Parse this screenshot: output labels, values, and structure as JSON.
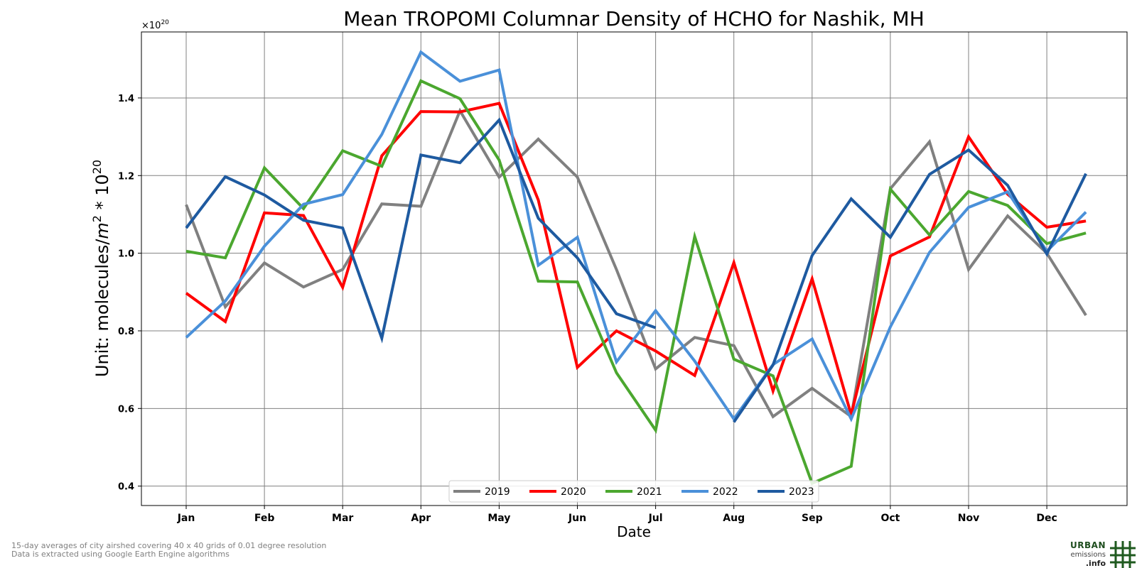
{
  "chart_data": {
    "type": "line",
    "title": "Mean TROPOMI Columnar Density of HCHO for Nashik, MH",
    "xlabel": "Date",
    "ylabel_prefix": "Unit: molecules/",
    "ylabel_m": "m",
    "ylabel_exp2": "2",
    "ylabel_mid": " * 10",
    "ylabel_exp20": "20",
    "offset_base": "×10",
    "offset_exp": "20",
    "ylim": [
      0.35,
      1.57
    ],
    "yticks": [
      "0.4",
      "0.6",
      "0.8",
      "1.0",
      "1.2",
      "1.4"
    ],
    "ytick_values": [
      0.4,
      0.6,
      0.8,
      1.0,
      1.2,
      1.4
    ],
    "xticks": [
      "Jan",
      "Feb",
      "Mar",
      "Apr",
      "May",
      "Jun",
      "Jul",
      "Aug",
      "Sep",
      "Oct",
      "Nov",
      "Dec"
    ],
    "x_points": [
      "Jan 1",
      "Jan 16",
      "Feb 1",
      "Feb 16",
      "Mar 1",
      "Mar 16",
      "Apr 1",
      "Apr 16",
      "May 1",
      "May 16",
      "Jun 1",
      "Jun 16",
      "Jul 1",
      "Jul 16",
      "Aug 1",
      "Aug 16",
      "Sep 1",
      "Sep 16",
      "Oct 1",
      "Oct 16",
      "Nov 1",
      "Nov 16",
      "Dec 1",
      "Dec 16"
    ],
    "grid": true,
    "legend_position": "bottom-center",
    "series": [
      {
        "name": "2019",
        "color": "#808080",
        "values": [
          1.125,
          0.862,
          0.975,
          0.913,
          0.958,
          1.127,
          1.121,
          1.367,
          1.196,
          1.294,
          1.196,
          0.958,
          0.702,
          0.783,
          0.762,
          0.579,
          0.652,
          0.579,
          1.166,
          1.287,
          0.958,
          1.096,
          1.0,
          0.84
        ]
      },
      {
        "name": "2020",
        "color": "#ff0000",
        "values": [
          0.897,
          0.824,
          1.104,
          1.097,
          0.912,
          1.251,
          1.365,
          1.364,
          1.386,
          1.137,
          0.706,
          0.8,
          0.748,
          0.685,
          0.976,
          0.645,
          0.934,
          0.584,
          0.993,
          1.042,
          1.3,
          1.152,
          1.067,
          1.083
        ]
      },
      {
        "name": "2021",
        "color": "#4ba72f",
        "values": [
          1.005,
          0.988,
          1.22,
          1.115,
          1.264,
          1.224,
          1.444,
          1.398,
          1.24,
          0.928,
          0.926,
          0.692,
          0.544,
          1.043,
          0.727,
          0.684,
          0.407,
          0.451,
          1.165,
          1.047,
          1.159,
          1.123,
          1.025,
          1.052
        ]
      },
      {
        "name": "2022",
        "color": "#4a90d9",
        "values": [
          0.783,
          0.877,
          1.018,
          1.126,
          1.151,
          1.306,
          1.518,
          1.443,
          1.472,
          0.969,
          1.041,
          0.72,
          0.852,
          0.722,
          0.573,
          0.713,
          0.779,
          0.573,
          0.81,
          1.002,
          1.118,
          1.158,
          1.005,
          1.106
        ]
      },
      {
        "name": "2023",
        "color": "#1e5aa0",
        "values": [
          1.065,
          1.197,
          1.15,
          1.085,
          1.065,
          0.781,
          1.253,
          1.233,
          1.343,
          1.09,
          0.988,
          0.844,
          0.808,
          null,
          0.565,
          0.712,
          0.994,
          1.14,
          1.041,
          1.203,
          1.266,
          1.175,
          0.998,
          1.205
        ]
      }
    ]
  },
  "footnotes": {
    "line1": "15-day averages of city airshed covering 40 x 40 grids of 0.01 degree resolution",
    "line2": "Data is extracted using Google Earth Engine algorithms"
  },
  "logo": {
    "line1": "URBAN",
    "line2": "emissions",
    "line3": ".info"
  }
}
